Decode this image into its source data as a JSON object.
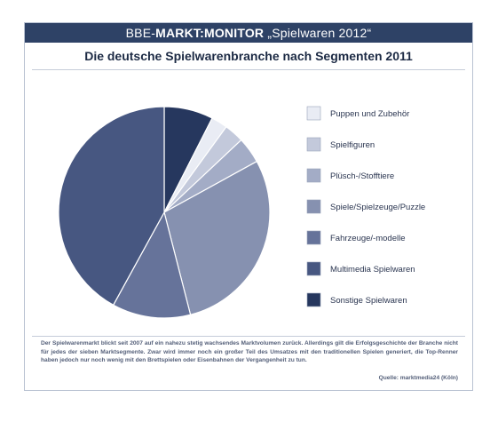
{
  "header": {
    "brand_prefix": "BBE-",
    "brand_bold": "MARKT:MONITOR",
    "brand_suffix": "„Spielwaren 2012“"
  },
  "chart_data": {
    "type": "pie",
    "title": "Die deutsche Spielwarenbranche nach Segmenten 2011",
    "legend_position": "right",
    "categories": [
      "Puppen und Zubehör",
      "Spielfiguren",
      "Plüsch-/Stofftiere",
      "Spiele/Spielzeuge/Puzzle",
      "Fahrzeuge/-modelle",
      "Multimedia Spielwaren",
      "Sonstige Spielwaren"
    ],
    "values": [
      2.5,
      3,
      4,
      29,
      12,
      42,
      7.5
    ],
    "colors": [
      "#e9ecf4",
      "#c3c9db",
      "#a3acc6",
      "#8691b0",
      "#66739a",
      "#475781",
      "#26375e"
    ]
  },
  "caption": {
    "text": "Der Spielwarenmarkt blickt seit 2007 auf ein nahezu stetig wachsendes Marktvolumen zurück. Allerdings gilt die Erfolgsgeschichte der Branche nicht für jedes der sieben Marktsegmente. Zwar wird immer noch ein großer Teil des Umsatzes mit den traditionellen Spielen generiert, die Top-Renner haben jedoch nur noch wenig mit den Brettspielen oder Eisenbahnen der Vergangenheit zu tun.",
    "source": "Quelle: marktmedia24 (Köln)"
  }
}
